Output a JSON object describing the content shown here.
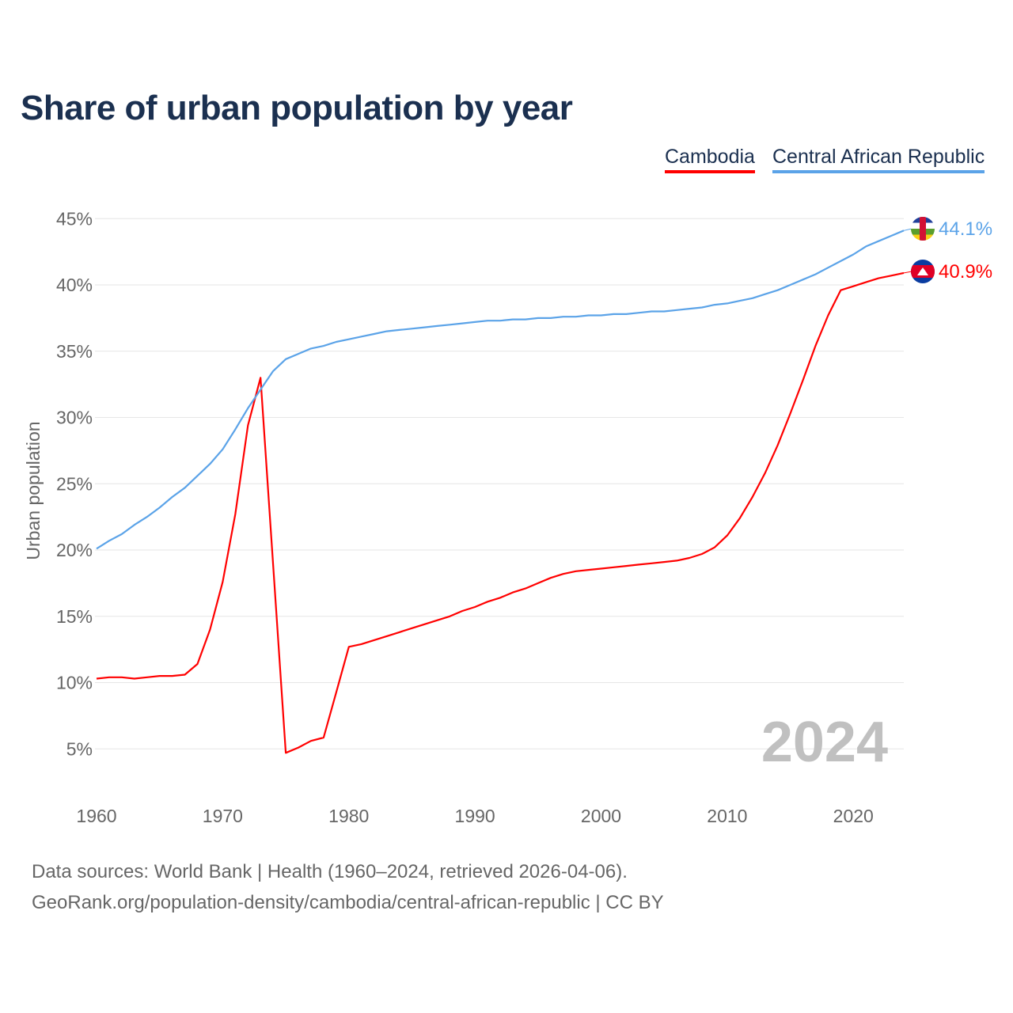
{
  "title": "Share of urban population by year",
  "legend": [
    {
      "name": "Cambodia",
      "color": "#ff0000"
    },
    {
      "name": "Central African Republic",
      "color": "#5ba3e8"
    }
  ],
  "footer": {
    "line1": "Data sources: World Bank | Health (1960–2024, retrieved 2026-04-06).",
    "line2": "GeoRank.org/population-density/cambodia/central-african-republic | CC BY"
  },
  "chart_data": {
    "type": "line",
    "title": "Share of urban population by year",
    "xlabel": "",
    "ylabel": "Urban population",
    "xlim": [
      1960,
      2024
    ],
    "ylim": [
      0,
      45
    ],
    "xticks": [
      "1960",
      "1970",
      "1980",
      "1990",
      "2000",
      "2010",
      "2020"
    ],
    "yticks": [
      "5%",
      "10%",
      "15%",
      "20%",
      "25%",
      "30%",
      "35%",
      "40%",
      "45%"
    ],
    "grid": true,
    "year_watermark": "2024",
    "x": [
      1960,
      1961,
      1962,
      1963,
      1964,
      1965,
      1966,
      1967,
      1968,
      1969,
      1970,
      1971,
      1972,
      1973,
      1974,
      1975,
      1976,
      1977,
      1978,
      1979,
      1980,
      1981,
      1982,
      1983,
      1984,
      1985,
      1986,
      1987,
      1988,
      1989,
      1990,
      1991,
      1992,
      1993,
      1994,
      1995,
      1996,
      1997,
      1998,
      1999,
      2000,
      2001,
      2002,
      2003,
      2004,
      2005,
      2006,
      2007,
      2008,
      2009,
      2010,
      2011,
      2012,
      2013,
      2014,
      2015,
      2016,
      2017,
      2018,
      2019,
      2020,
      2021,
      2022,
      2023,
      2024
    ],
    "series": [
      {
        "name": "Cambodia",
        "color": "#ff0000",
        "end_label": "40.9%",
        "values": [
          10.3,
          10.4,
          10.4,
          10.3,
          10.4,
          10.5,
          10.5,
          10.6,
          11.4,
          14.0,
          17.6,
          22.7,
          29.4,
          33.0,
          18.9,
          4.7,
          5.1,
          5.6,
          5.85,
          9.25,
          12.7,
          12.9,
          13.2,
          13.5,
          13.8,
          14.1,
          14.4,
          14.7,
          15.0,
          15.4,
          15.7,
          16.1,
          16.4,
          16.8,
          17.1,
          17.5,
          17.9,
          18.2,
          18.4,
          18.5,
          18.6,
          18.7,
          18.8,
          18.9,
          19.0,
          19.1,
          19.2,
          19.4,
          19.7,
          20.2,
          21.1,
          22.4,
          24.0,
          25.8,
          27.9,
          30.3,
          32.8,
          35.4,
          37.7,
          39.6,
          39.9,
          40.2,
          40.5,
          40.7,
          40.9
        ]
      },
      {
        "name": "Central African Republic",
        "color": "#5ba3e8",
        "end_label": "44.1%",
        "values": [
          20.1,
          20.7,
          21.2,
          21.9,
          22.5,
          23.2,
          24.0,
          24.7,
          25.6,
          26.5,
          27.6,
          29.1,
          30.7,
          32.1,
          33.5,
          34.4,
          34.8,
          35.2,
          35.4,
          35.7,
          35.9,
          36.1,
          36.3,
          36.5,
          36.6,
          36.7,
          36.8,
          36.9,
          37.0,
          37.1,
          37.2,
          37.3,
          37.3,
          37.4,
          37.4,
          37.5,
          37.5,
          37.6,
          37.6,
          37.7,
          37.7,
          37.8,
          37.8,
          37.9,
          38.0,
          38.0,
          38.1,
          38.2,
          38.3,
          38.5,
          38.6,
          38.8,
          39.0,
          39.3,
          39.6,
          40.0,
          40.4,
          40.8,
          41.3,
          41.8,
          42.3,
          42.9,
          43.3,
          43.7,
          44.1
        ]
      }
    ]
  }
}
